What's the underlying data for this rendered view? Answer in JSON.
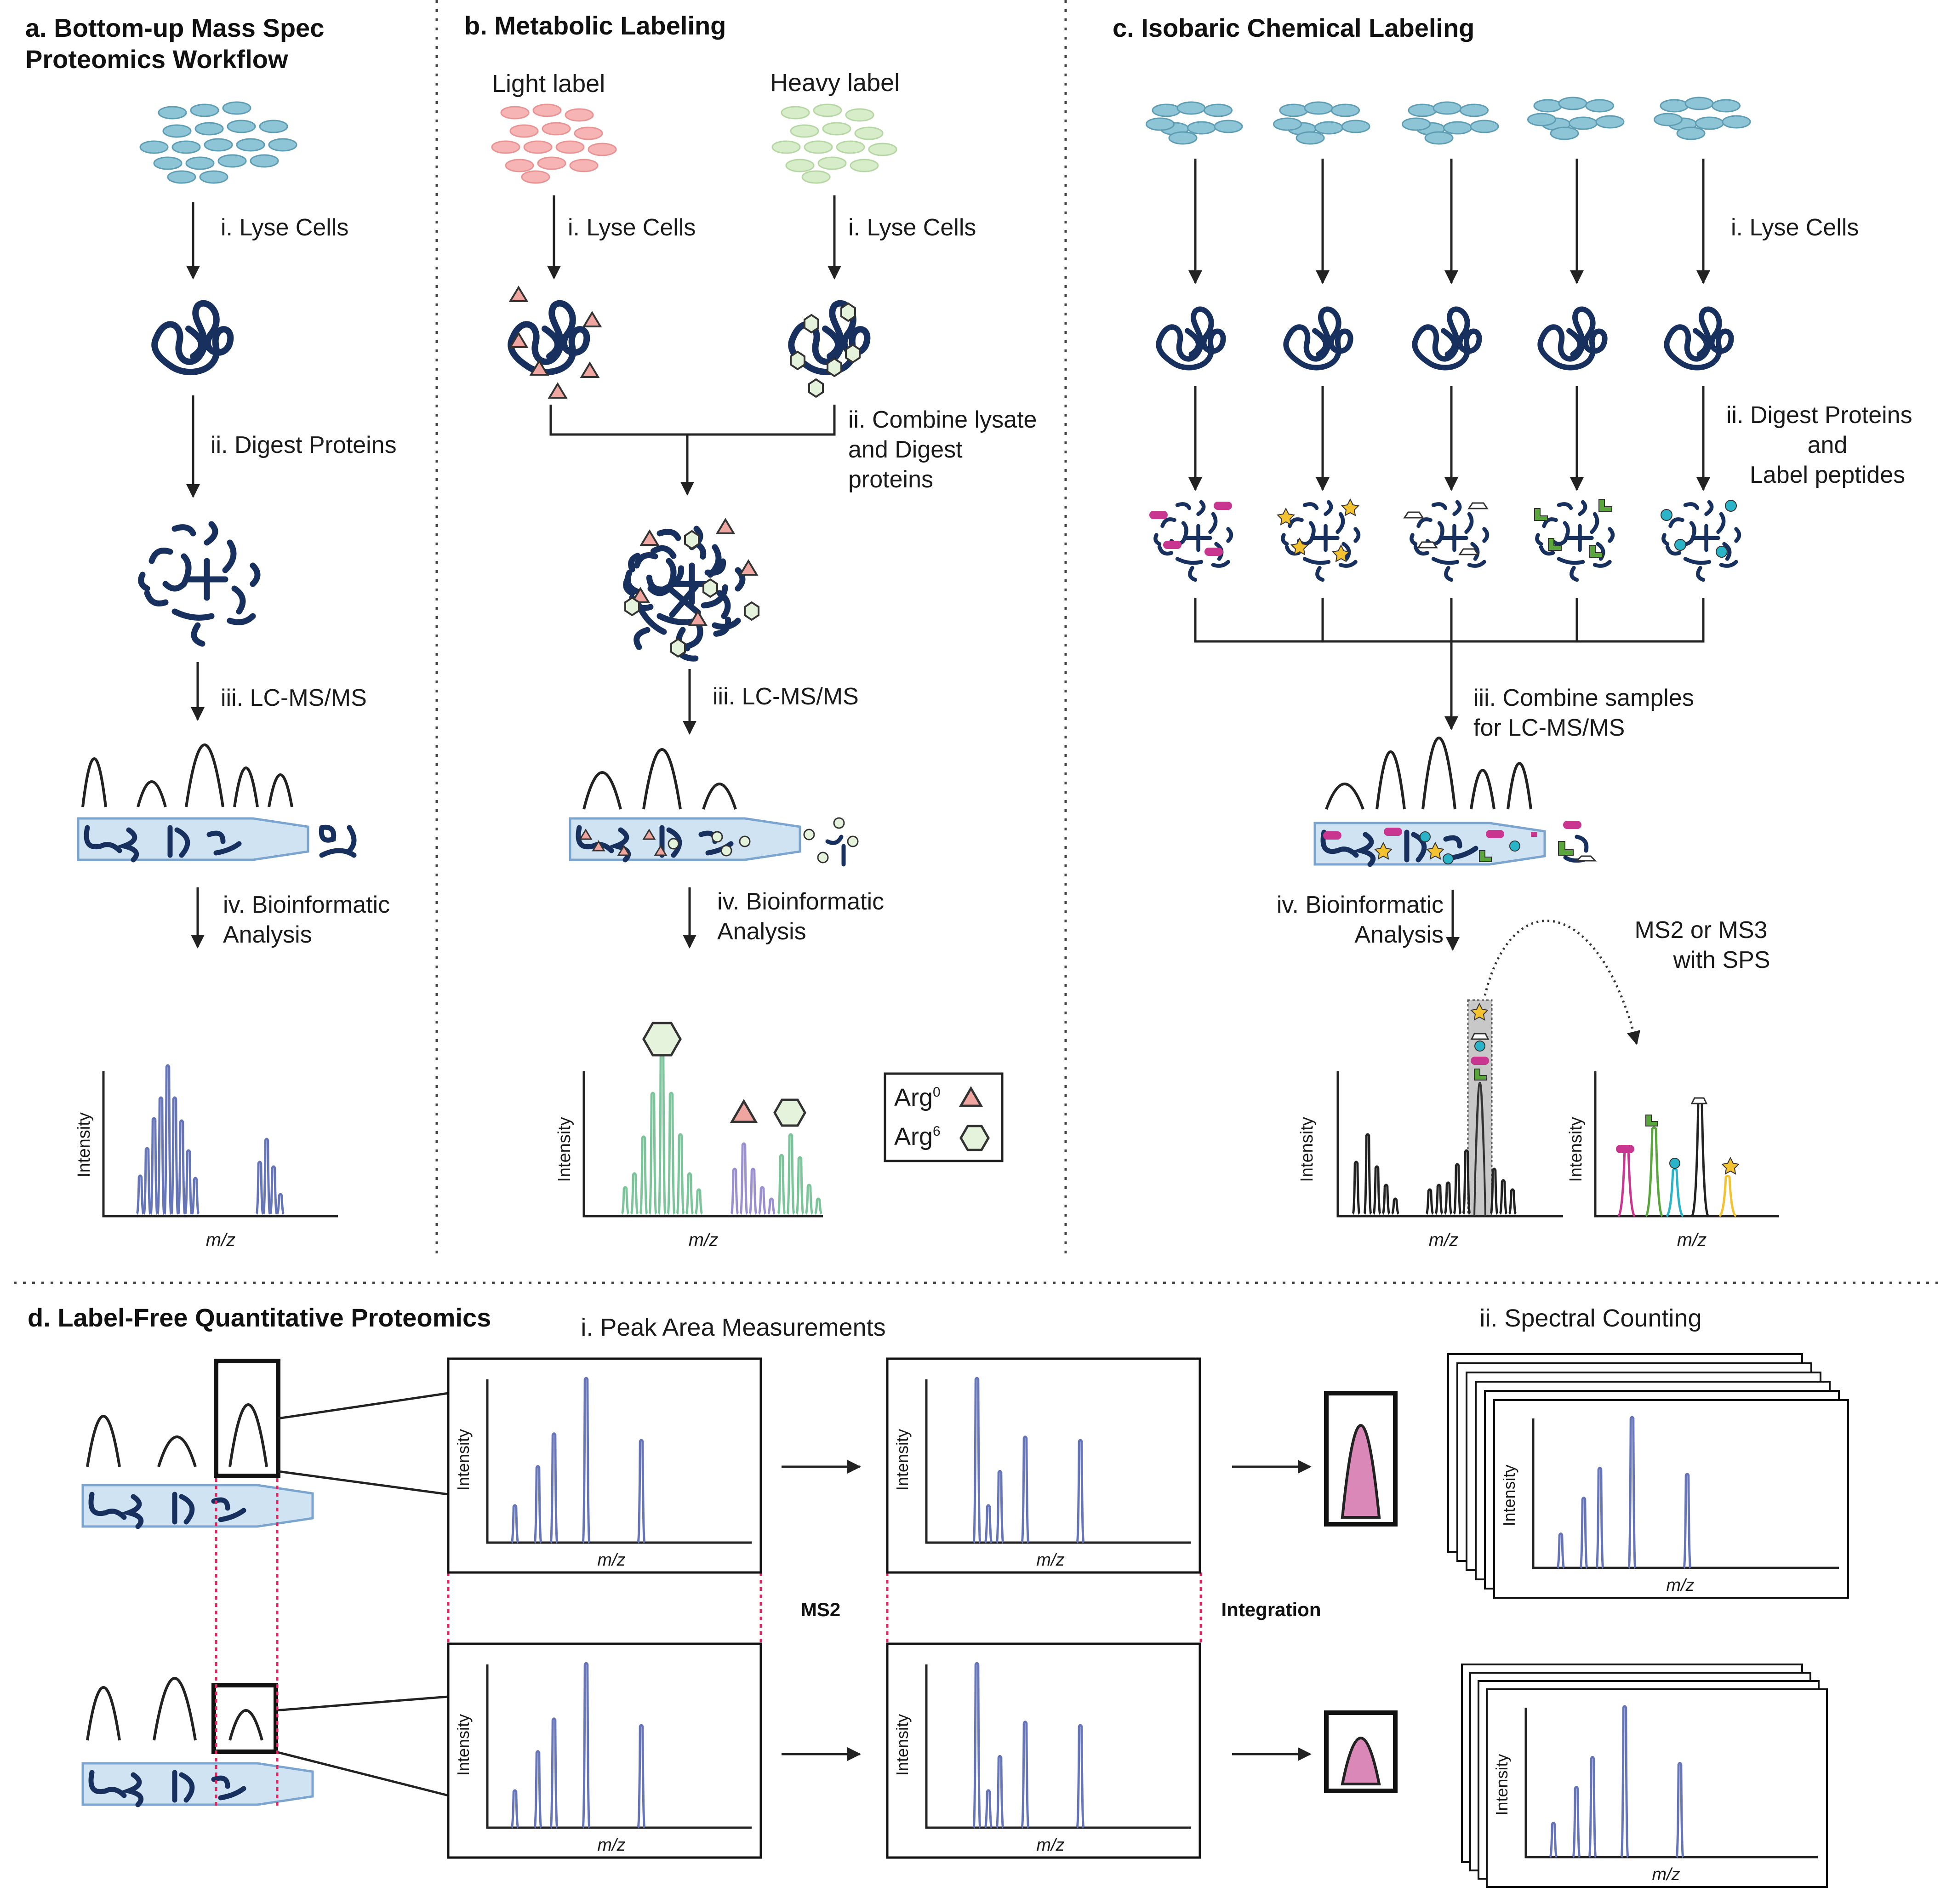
{
  "colors": {
    "cell": "#8ec5d6",
    "protein": "#17305e",
    "peak": "#6674b8",
    "green_peak": "#7cc49a",
    "purple_peak": "#9b8fd0",
    "light": "#f4a8a8",
    "heavy": "#cfe8c6",
    "magenta": "#c9368f",
    "yellow": "#f2c230",
    "cyan": "#2bb3c8",
    "lime": "#5aa63c",
    "column": "#cfe3f2",
    "dashed_red": "#e0245e",
    "pink_area": "#d988b8"
  },
  "panel_a": {
    "title_line1": "a. Bottom-up Mass Spec",
    "title_line2": "Proteomics Workflow",
    "step1": "i. Lyse Cells",
    "step2": "ii. Digest Proteins",
    "step3": "iii. LC-MS/MS",
    "step4_line1": "iv. Bioinformatic",
    "step4_line2": "Analysis",
    "ylabel": "Intensity",
    "xlabel": "m/z"
  },
  "panel_b": {
    "title": "b. Metabolic Labeling",
    "light_label": "Light label",
    "heavy_label": "Heavy label",
    "step1_left": "i. Lyse Cells",
    "step1_right": "i. Lyse Cells",
    "step2_line1": "ii. Combine lysate",
    "step2_line2": "and Digest",
    "step2_line3": "proteins",
    "step3": "iii. LC-MS/MS",
    "step4_line1": "iv. Bioinformatic",
    "step4_line2": "Analysis",
    "ylabel": "Intensity",
    "xlabel": "m/z",
    "legend_arg0": "Arg",
    "legend_arg0_sup": "0",
    "legend_arg6": "Arg",
    "legend_arg6_sup": "6"
  },
  "panel_c": {
    "title": "c. Isobaric Chemical Labeling",
    "step1": "i. Lyse Cells",
    "step2_line1": "ii. Digest Proteins",
    "step2_line2": "and",
    "step2_line3": "Label peptides",
    "step3_line1": "iii. Combine samples",
    "step3_line2": "for LC-MS/MS",
    "step4_line1": "iv. Bioinformatic",
    "step4_line2": "Analysis",
    "ms_note_line1": "MS2 or MS3",
    "ms_note_line2": "with SPS",
    "ylabel_left": "Intensity",
    "xlabel_left": "m/z",
    "ylabel_right": "Intensity",
    "xlabel_right": "m/z"
  },
  "panel_d": {
    "title": "d. Label-Free Quantitative Proteomics",
    "peak_area_title": "i. Peak Area Measurements",
    "spectral_title": "ii. Spectral Counting",
    "ms2_label": "MS2",
    "integration_label": "Integration",
    "ylabel": "Intensity",
    "xlabel": "m/z"
  }
}
